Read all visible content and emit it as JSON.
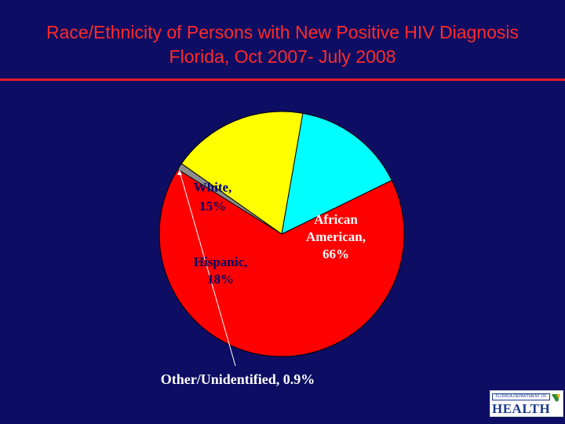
{
  "title": {
    "line1": "Race/Ethnicity of Persons with New Positive HIV Diagnosis",
    "line2": "Florida, Oct 2007- July 2008"
  },
  "colors": {
    "background": "#0d0d63",
    "title": "#ff2a2a",
    "rule": "#e8192c"
  },
  "chart_data": {
    "type": "pie",
    "title": "Race/Ethnicity of Persons with New Positive HIV Diagnosis Florida, Oct 2007- July 2008",
    "slices": [
      {
        "key": "african_american",
        "label_lines": [
          "African",
          "American,",
          "66%"
        ],
        "value": 66,
        "color": "#ff0000",
        "label_color": "#ffffff"
      },
      {
        "key": "other",
        "label_lines": [
          "Other/Unidentified, 0.9%"
        ],
        "value": 0.9,
        "color": "#8c8c8c",
        "label_color": "#ffffff"
      },
      {
        "key": "hispanic",
        "label_lines": [
          "Hispanic,",
          "18%"
        ],
        "value": 18,
        "color": "#ffff00",
        "label_color": "#000066"
      },
      {
        "key": "white",
        "label_lines": [
          "White,",
          "15%"
        ],
        "value": 15,
        "color": "#00ffff",
        "label_color": "#000066"
      }
    ],
    "legend": "none"
  },
  "logo": {
    "top_text": "FLORIDA DEPARTMENT OF",
    "main_text": "HEALTH",
    "icon": "florida-leaf-icon"
  }
}
